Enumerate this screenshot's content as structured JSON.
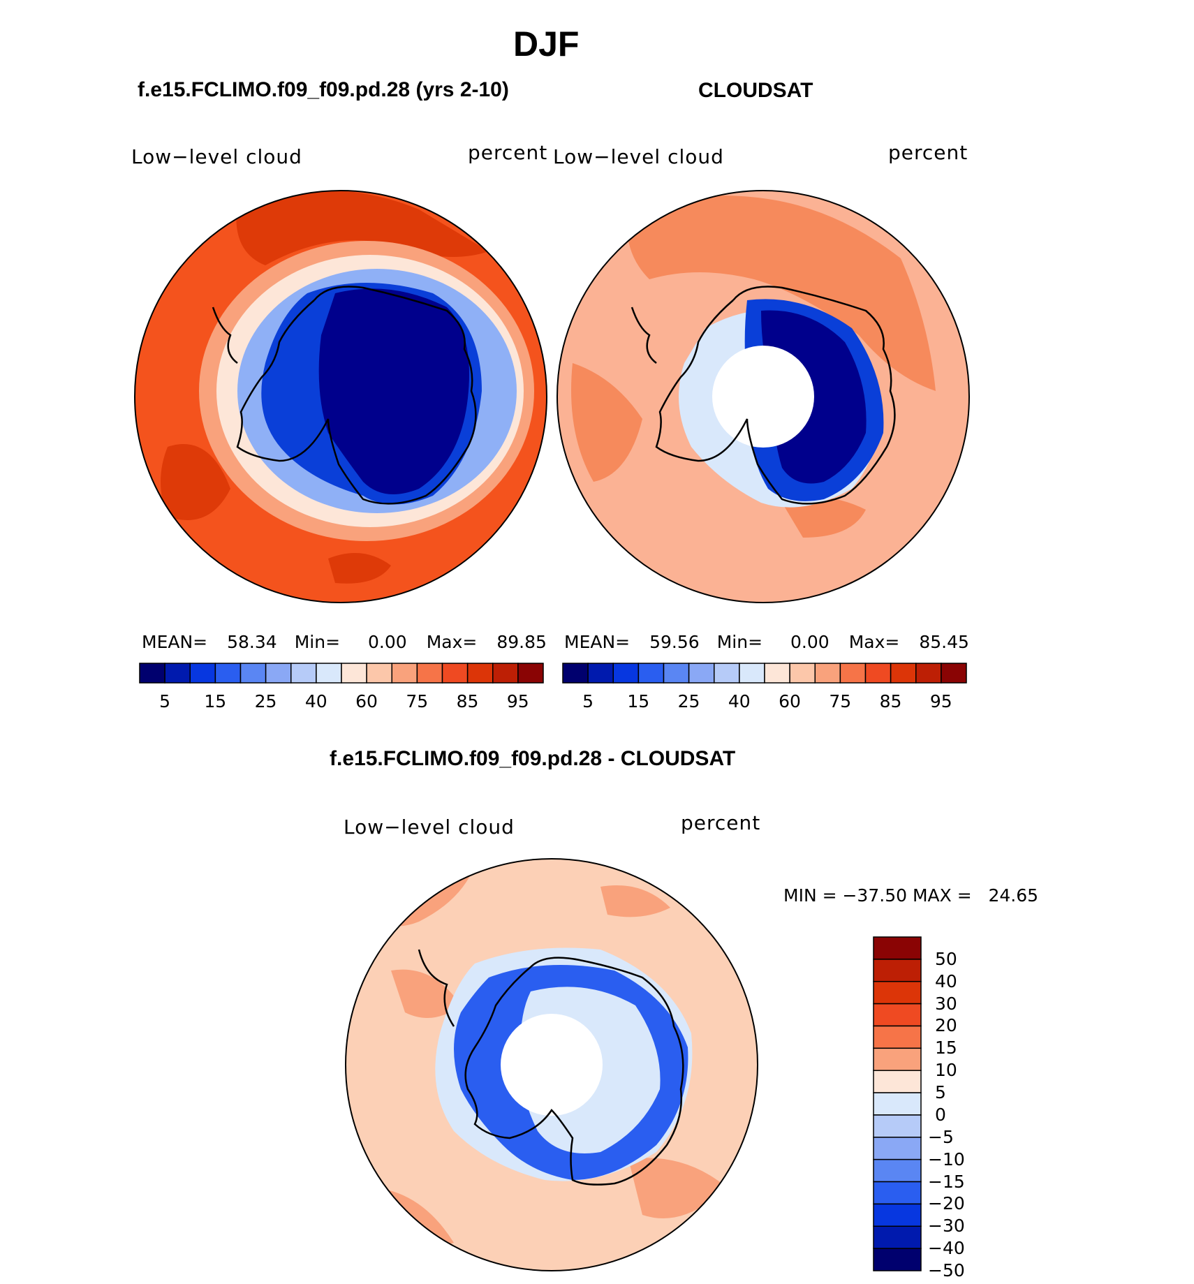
{
  "header": {
    "title": "DJF"
  },
  "panels": [
    {
      "id": "model",
      "heading": "f.e15.FCLIMO.f09_f09.pd.28 (yrs 2-10)",
      "left_label": "Low−level cloud",
      "right_label": "percent",
      "stats": {
        "mean_label": "MEAN=",
        "mean": "58.34",
        "min_label": "Min=",
        "min": "0.00",
        "max_label": "Max=",
        "max": "89.85"
      }
    },
    {
      "id": "obs",
      "heading": "CLOUDSAT",
      "left_label": "Low−level cloud",
      "right_label": "percent",
      "stats": {
        "mean_label": "MEAN=",
        "mean": "59.56",
        "min_label": "Min=",
        "min": "0.00",
        "max_label": "Max=",
        "max": "85.45"
      }
    },
    {
      "id": "diff",
      "heading": "f.e15.FCLIMO.f09_f09.pd.28 - CLOUDSAT",
      "left_label": "Low−level cloud",
      "right_label": "percent",
      "minmax": "MIN = −37.50 MAX =   24.65"
    }
  ],
  "colorbar_abs": {
    "colors": [
      "#00006e",
      "#001aae",
      "#0737e0",
      "#2a5ef0",
      "#5a86f3",
      "#8aa8f5",
      "#b6cbf8",
      "#d9e8fb",
      "#fde6d8",
      "#fcc7aa",
      "#f9a27c",
      "#f67448",
      "#ef4a22",
      "#dc3508",
      "#bd1f05",
      "#8a0404"
    ],
    "tick_labels": [
      "5",
      "15",
      "25",
      "40",
      "60",
      "75",
      "85",
      "95"
    ]
  },
  "colorbar_diff": {
    "colors_top_to_bottom": [
      "#8a0404",
      "#bd1f05",
      "#dc3508",
      "#ef4a22",
      "#f67448",
      "#f9a27c",
      "#fde6d8",
      "#d9e8fb",
      "#b6cbf8",
      "#8aa8f5",
      "#5a86f3",
      "#2a5ef0",
      "#0737e0",
      "#001aae",
      "#00006e"
    ],
    "tick_labels_top_to_bottom": [
      "50",
      "40",
      "30",
      "20",
      "15",
      "10",
      "5",
      "0",
      "−5",
      "−10",
      "−15",
      "−20",
      "−30",
      "−40",
      "−50"
    ]
  },
  "map_colors": {
    "ocean_model": "#f4531d",
    "ocean_model_dark": "#de3a08",
    "ocean_obs": "#fbb294",
    "ocean_obs_mid": "#f68a5c",
    "ice_dark": "#00008c",
    "ice_mid": "#0a3fd8",
    "ice_light": "#8fb0f6",
    "diff_ocean": "#fcd0b6",
    "diff_ocean_strong": "#f9a27c",
    "diff_ice_blue": "#2a5ef0",
    "diff_ice_light": "#d9e8fb",
    "white": "#ffffff"
  }
}
